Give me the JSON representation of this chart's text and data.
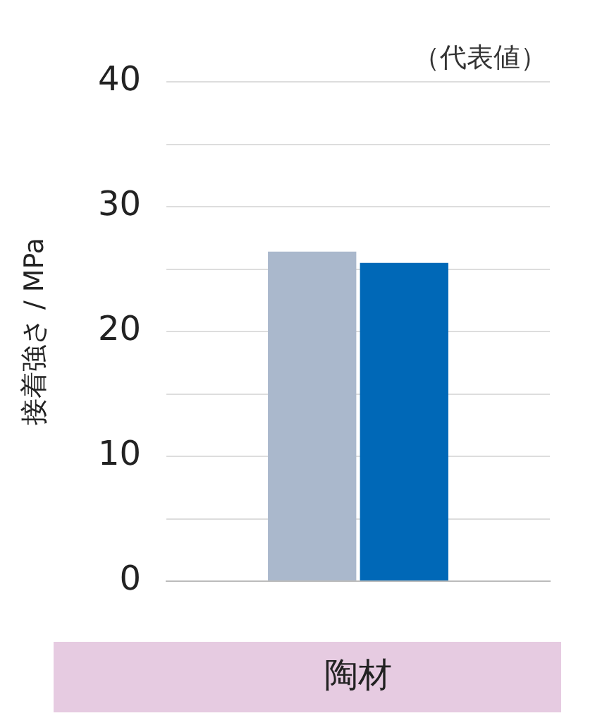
{
  "chart_data": {
    "type": "bar",
    "ylabel": "接着強さ / MPa",
    "annotations": [
      "（代表値）"
    ],
    "categories": [
      "陶材"
    ],
    "series": [
      {
        "color": "#aab8cc",
        "values": [
          26.4
        ]
      },
      {
        "color": "#0068b7",
        "values": [
          25.5
        ]
      }
    ],
    "ylim": [
      0,
      40
    ],
    "yticks": [
      0,
      {
        "value": 5,
        "label": null
      },
      10,
      {
        "value": 15,
        "label": null
      },
      20,
      {
        "value": 25,
        "label": null
      },
      30,
      {
        "value": 35,
        "label": null
      },
      40
    ],
    "grid": "y",
    "legend": false
  }
}
